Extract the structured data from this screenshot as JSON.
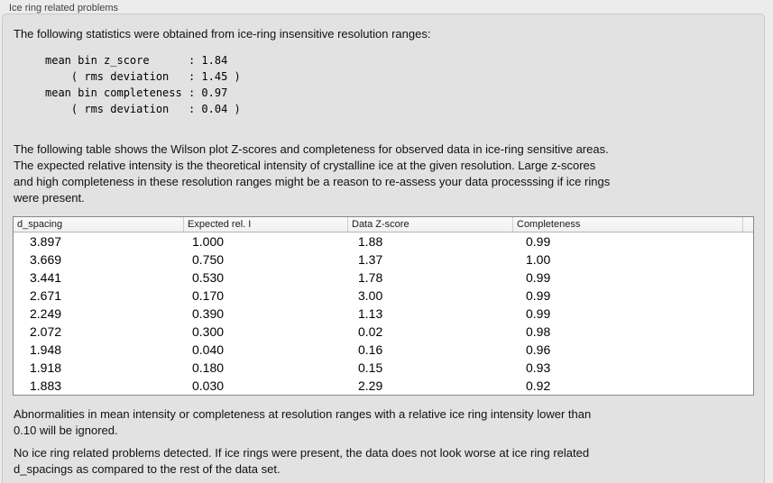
{
  "colors": {
    "page_bg": "#ececec",
    "panel_bg": "#e2e2e2",
    "panel_border": "#c9c9c9",
    "table_bg": "#ffffff",
    "table_border": "#878787",
    "table_header_bg": "#f5f5f5",
    "header_separator": "#cfcfcf",
    "body_text": "#111111",
    "title_text": "#3f3f3f"
  },
  "panel": {
    "title": "Ice ring related problems",
    "intro": "The following statistics were obtained from ice-ring insensitive resolution ranges:",
    "stats_block": "mean bin z_score      : 1.84\n    ( rms deviation   : 1.45 )\nmean bin completeness : 0.97\n    ( rms deviation   : 0.04 )",
    "stats": {
      "mean_bin_z_score": "1.84",
      "z_score_rms_deviation": "1.45",
      "mean_bin_completeness": "0.97",
      "completeness_rms_deviation": "0.04"
    },
    "table_description": "The following table shows the Wilson plot Z-scores and completeness for observed data in ice-ring sensitive areas.\nThe expected relative intensity is the theoretical intensity of crystalline ice at the given resolution. Large z-scores\nand high completeness in these resolution ranges might be a reason to re-assess your data processsing if ice rings\nwere present.",
    "note_ignore": "Abnormalities in mean intensity or completeness at resolution ranges with a relative ice ring intensity lower than\n0.10 will be ignored.",
    "conclusion": "No ice ring related problems detected. If ice rings were present, the data does not look worse at ice ring related\nd_spacings as compared to the rest of the data set."
  },
  "table": {
    "columns": [
      "d_spacing",
      "Expected rel. I",
      "Data Z-score",
      "Completeness"
    ],
    "rows": [
      [
        "3.897",
        "1.000",
        "1.88",
        "0.99"
      ],
      [
        "3.669",
        "0.750",
        "1.37",
        "1.00"
      ],
      [
        "3.441",
        "0.530",
        "1.78",
        "0.99"
      ],
      [
        "2.671",
        "0.170",
        "3.00",
        "0.99"
      ],
      [
        "2.249",
        "0.390",
        "1.13",
        "0.99"
      ],
      [
        "2.072",
        "0.300",
        "0.02",
        "0.98"
      ],
      [
        "1.948",
        "0.040",
        "0.16",
        "0.96"
      ],
      [
        "1.918",
        "0.180",
        "0.15",
        "0.93"
      ],
      [
        "1.883",
        "0.030",
        "2.29",
        "0.92"
      ]
    ]
  }
}
